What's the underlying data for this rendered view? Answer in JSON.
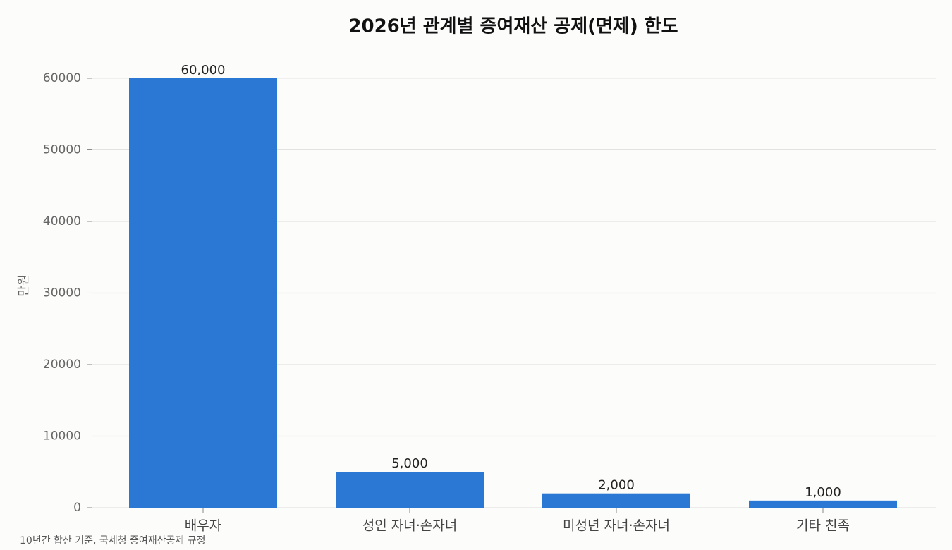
{
  "chart_data": {
    "type": "bar",
    "title": "2026년 관계별 증여재산 공제(면제) 한도",
    "y_label": "만원",
    "footnote": "10년간 합산 기준, 국세청 증여재산공제 규정",
    "categories": [
      "배우자",
      "성인 자녀·손자녀",
      "미성년 자녀·손자녀",
      "기타 친족"
    ],
    "values": [
      60000,
      5000,
      2000,
      1000
    ],
    "value_labels": [
      "60,000",
      "5,000",
      "2,000",
      "1,000"
    ],
    "color": "#2b78d4",
    "ylim": [
      0,
      63000
    ],
    "yticks": [
      0,
      10000,
      20000,
      30000,
      40000,
      50000,
      60000
    ],
    "grid": true
  }
}
